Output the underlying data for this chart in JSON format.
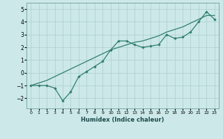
{
  "title": "",
  "xlabel": "Humidex (Indice chaleur)",
  "xlim": [
    -0.5,
    23.5
  ],
  "ylim": [
    -2.8,
    5.5
  ],
  "xticks": [
    0,
    1,
    2,
    3,
    4,
    5,
    6,
    7,
    8,
    9,
    10,
    11,
    12,
    13,
    14,
    15,
    16,
    17,
    18,
    19,
    20,
    21,
    22,
    23
  ],
  "yticks": [
    -2,
    -1,
    0,
    1,
    2,
    3,
    4,
    5
  ],
  "bg_color": "#cce8e8",
  "line_color": "#2e7d6e",
  "grid_color": "#aacece",
  "line1_x": [
    0,
    1,
    2,
    3,
    4,
    5,
    6,
    7,
    8,
    9,
    10,
    11,
    12,
    13,
    14,
    15,
    16,
    17,
    18,
    19,
    20,
    21,
    22,
    23
  ],
  "line1_y": [
    -1.0,
    -1.0,
    -1.0,
    -1.2,
    -2.2,
    -1.5,
    -0.3,
    0.1,
    0.5,
    0.9,
    1.8,
    2.5,
    2.5,
    2.2,
    2.0,
    2.1,
    2.2,
    3.0,
    2.7,
    2.8,
    3.2,
    4.0,
    4.8,
    4.2
  ],
  "line2_x": [
    0,
    1,
    2,
    3,
    4,
    5,
    6,
    7,
    8,
    9,
    10,
    11,
    12,
    13,
    14,
    15,
    16,
    17,
    18,
    19,
    20,
    21,
    22,
    23
  ],
  "line2_y": [
    -1.0,
    -0.8,
    -0.6,
    -0.3,
    0.0,
    0.3,
    0.6,
    0.9,
    1.2,
    1.5,
    1.8,
    2.0,
    2.2,
    2.4,
    2.5,
    2.7,
    2.9,
    3.2,
    3.4,
    3.6,
    3.9,
    4.2,
    4.5,
    4.5
  ],
  "xlabel_fontsize": 6.0,
  "tick_fontsize_x": 4.5,
  "tick_fontsize_y": 5.5
}
